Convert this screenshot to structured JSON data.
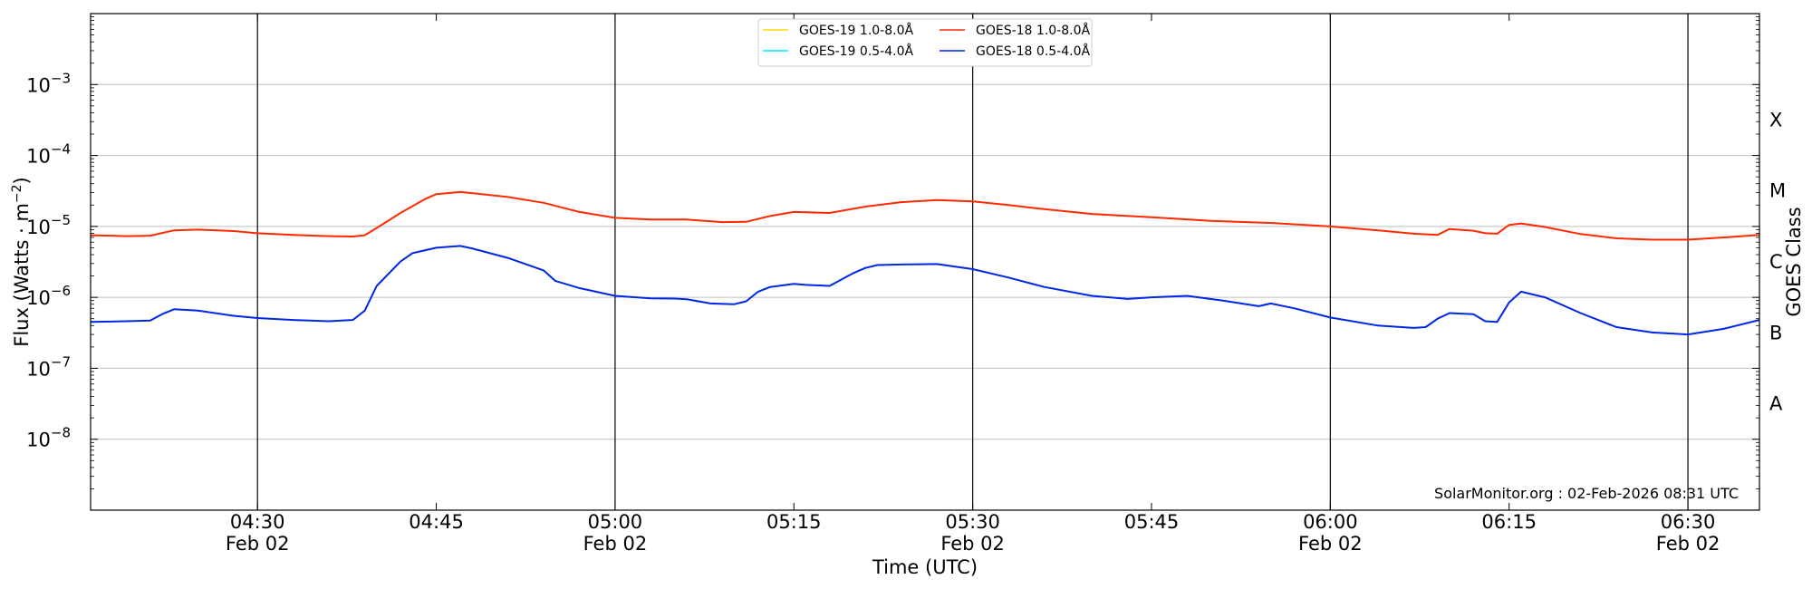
{
  "chart_data": {
    "type": "line",
    "xlabel": "Time (UTC)",
    "ylabel_main": "Flux (Watts · m",
    "ylabel_sup": "−2",
    "ylabel_close": ")",
    "right_label": "GOES Class",
    "y_scale": "log",
    "ylim": [
      1e-09,
      0.01
    ],
    "xlim": [
      "04:16",
      "06:36"
    ],
    "x_ticks": [
      {
        "t": "04:30",
        "label": "04:30",
        "date": "Feb 02",
        "major": true
      },
      {
        "t": "04:45",
        "label": "04:45",
        "date": "",
        "major": false
      },
      {
        "t": "05:00",
        "label": "05:00",
        "date": "Feb 02",
        "major": true
      },
      {
        "t": "05:15",
        "label": "05:15",
        "date": "",
        "major": false
      },
      {
        "t": "05:30",
        "label": "05:30",
        "date": "Feb 02",
        "major": true
      },
      {
        "t": "05:45",
        "label": "05:45",
        "date": "",
        "major": false
      },
      {
        "t": "06:00",
        "label": "06:00",
        "date": "Feb 02",
        "major": true
      },
      {
        "t": "06:15",
        "label": "06:15",
        "date": "",
        "major": false
      },
      {
        "t": "06:30",
        "label": "06:30",
        "date": "Feb 02",
        "major": true
      }
    ],
    "y_ticks": [
      {
        "exp": -8,
        "label": "10",
        "sup": "−8"
      },
      {
        "exp": -7,
        "label": "10",
        "sup": "−7"
      },
      {
        "exp": -6,
        "label": "10",
        "sup": "−6"
      },
      {
        "exp": -5,
        "label": "10",
        "sup": "−5"
      },
      {
        "exp": -4,
        "label": "10",
        "sup": "−4"
      },
      {
        "exp": -3,
        "label": "10",
        "sup": "−3"
      }
    ],
    "gridlines": "horizontal at decades, vertical at 30-minute marks",
    "goes_classes": [
      {
        "label": "A",
        "exp": -7.5
      },
      {
        "label": "B",
        "exp": -6.5
      },
      {
        "label": "C",
        "exp": -5.5
      },
      {
        "label": "M",
        "exp": -4.5
      },
      {
        "label": "X",
        "exp": -3.5
      }
    ],
    "legend_placement": "top-center",
    "legend": [
      {
        "label": "GOES-19 1.0-8.0Å",
        "color": "#ffd700"
      },
      {
        "label": "GOES-19 0.5-4.0Å",
        "color": "#00e5ff"
      },
      {
        "label": "GOES-18 1.0-8.0Å",
        "color": "#ff2a00"
      },
      {
        "label": "GOES-18 0.5-4.0Å",
        "color": "#0026e6"
      }
    ],
    "series": [
      {
        "name": "GOES-18 1.0-8.0Å",
        "color": "#ff2a00",
        "x": [
          "04:16",
          "04:19",
          "04:21",
          "04:23",
          "04:25",
          "04:28",
          "04:30",
          "04:33",
          "04:36",
          "04:38",
          "04:39",
          "04:40",
          "04:42",
          "04:44",
          "04:45",
          "04:47",
          "04:48",
          "04:51",
          "04:54",
          "04:57",
          "05:00",
          "05:03",
          "05:06",
          "05:09",
          "05:11",
          "05:13",
          "05:15",
          "05:18",
          "05:21",
          "05:24",
          "05:27",
          "05:30",
          "05:33",
          "05:36",
          "05:40",
          "05:45",
          "05:50",
          "05:55",
          "06:00",
          "06:04",
          "06:07",
          "06:09",
          "06:10",
          "06:12",
          "06:13",
          "06:14",
          "06:15",
          "06:16",
          "06:18",
          "06:21",
          "06:24",
          "06:27",
          "06:30",
          "06:33",
          "06:36"
        ],
        "y": [
          7.5e-06,
          7.3e-06,
          7.4e-06,
          8.8e-06,
          9e-06,
          8.6e-06,
          8e-06,
          7.6e-06,
          7.3e-06,
          7.2e-06,
          7.5e-06,
          9.5e-06,
          1.55e-05,
          2.4e-05,
          2.85e-05,
          3.05e-05,
          2.95e-05,
          2.6e-05,
          2.15e-05,
          1.6e-05,
          1.32e-05,
          1.25e-05,
          1.25e-05,
          1.15e-05,
          1.16e-05,
          1.4e-05,
          1.6e-05,
          1.55e-05,
          1.9e-05,
          2.2e-05,
          2.35e-05,
          2.25e-05,
          2e-05,
          1.75e-05,
          1.5e-05,
          1.35e-05,
          1.2e-05,
          1.12e-05,
          1e-05,
          8.8e-06,
          7.9e-06,
          7.6e-06,
          9.2e-06,
          8.7e-06,
          8e-06,
          7.9e-06,
          1.05e-05,
          1.1e-05,
          9.8e-06,
          7.8e-06,
          6.8e-06,
          6.5e-06,
          6.5e-06,
          7e-06,
          7.6e-06
        ]
      },
      {
        "name": "GOES-18 0.5-4.0Å",
        "color": "#0026e6",
        "x": [
          "04:16",
          "04:19",
          "04:21",
          "04:22",
          "04:23",
          "04:25",
          "04:28",
          "04:30",
          "04:33",
          "04:36",
          "04:38",
          "04:39",
          "04:40",
          "04:42",
          "04:43",
          "04:45",
          "04:47",
          "04:48",
          "04:51",
          "04:54",
          "04:55",
          "04:57",
          "05:00",
          "05:03",
          "05:05",
          "05:06",
          "05:08",
          "05:10",
          "05:11",
          "05:12",
          "05:13",
          "05:15",
          "05:16",
          "05:18",
          "05:20",
          "05:21",
          "05:22",
          "05:24",
          "05:27",
          "05:30",
          "05:33",
          "05:36",
          "05:40",
          "05:43",
          "05:45",
          "05:48",
          "05:51",
          "05:54",
          "05:55",
          "05:57",
          "06:00",
          "06:04",
          "06:07",
          "06:08",
          "06:09",
          "06:10",
          "06:12",
          "06:13",
          "06:14",
          "06:15",
          "06:16",
          "06:18",
          "06:21",
          "06:24",
          "06:27",
          "06:30",
          "06:33",
          "06:36"
        ],
        "y": [
          4.5e-07,
          4.6e-07,
          4.7e-07,
          5.8e-07,
          6.8e-07,
          6.5e-07,
          5.5e-07,
          5.1e-07,
          4.8e-07,
          4.6e-07,
          4.8e-07,
          6.5e-07,
          1.45e-06,
          3.2e-06,
          4.2e-06,
          5e-06,
          5.3e-06,
          4.9e-06,
          3.6e-06,
          2.4e-06,
          1.7e-06,
          1.35e-06,
          1.05e-06,
          9.7e-07,
          9.6e-07,
          9.4e-07,
          8.2e-07,
          8e-07,
          8.8e-07,
          1.2e-06,
          1.4e-06,
          1.55e-06,
          1.5e-06,
          1.45e-06,
          2.2e-06,
          2.6e-06,
          2.85e-06,
          2.9e-06,
          2.95e-06,
          2.5e-06,
          1.9e-06,
          1.4e-06,
          1.05e-06,
          9.5e-07,
          1e-06,
          1.05e-06,
          9e-07,
          7.5e-07,
          8.2e-07,
          7e-07,
          5.2e-07,
          4e-07,
          3.7e-07,
          3.8e-07,
          5e-07,
          6e-07,
          5.8e-07,
          4.6e-07,
          4.5e-07,
          8.5e-07,
          1.2e-06,
          1e-06,
          6e-07,
          3.8e-07,
          3.2e-07,
          3e-07,
          3.6e-07,
          4.8e-07
        ]
      }
    ]
  },
  "annotation": "SolarMonitor.org : 02-Feb-2026 08:31 UTC"
}
